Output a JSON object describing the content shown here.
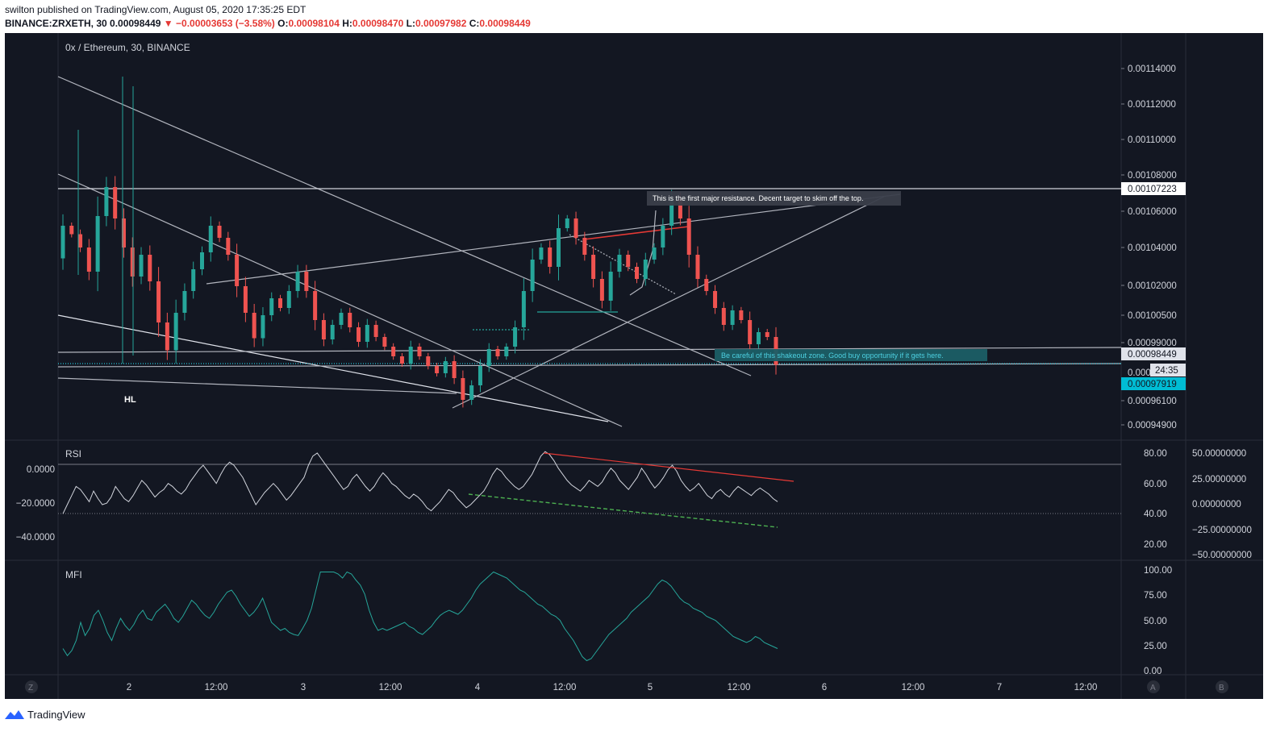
{
  "header": {
    "published_line": "swilton published on TradingView.com, August 05, 2020 17:35:25 EDT",
    "symbol": "BINANCE:ZRXETH, 30",
    "last": "0.00098449",
    "change": "−0.00003653 (−3.58%)",
    "o_label": "O:",
    "o": "0.00098104",
    "h_label": "H:",
    "h": "0.00098470",
    "l_label": "L:",
    "l": "0.00097982",
    "c_label": "C:",
    "c": "0.00098449"
  },
  "colors": {
    "background": "#131722",
    "up": "#26a69a",
    "down": "#ef5350",
    "rsi_line": "#d1d4dc",
    "mfi_line": "#26a69a",
    "resistance_red": "#e53935",
    "divergence_green": "#4caf50",
    "cyan_label": "#00bcd4"
  },
  "chart_data": [
    {
      "type": "candlestick",
      "title": "0x / Ethereum, 30, BINANCE",
      "x_ticks": [
        "2",
        "12:00",
        "3",
        "12:00",
        "4",
        "12:00",
        "5",
        "12:00",
        "6",
        "12:00",
        "7",
        "12:00"
      ],
      "y_ticks": [
        "0.00114000",
        "0.00112000",
        "0.00110000",
        "0.00108000",
        "0.00106000",
        "0.00104000",
        "0.00102000",
        "0.00100500",
        "0.00099000",
        "0.00096100",
        "0.00094900"
      ],
      "price_labels": {
        "resistance": "0.00107223",
        "last": "0.00098449",
        "countdown": "24:35",
        "cyan": "0.00097919",
        "partial": "0.000"
      },
      "annotations": {
        "resistance_note": "This is the first major resistance.  Decent target to skim off the top.",
        "shakeout_note": "Be careful of this shakeout zone.  Good buy opportunity if it gets here.",
        "hl": "HL"
      },
      "candles_approx": [
        [
          1.0285,
          1.042
        ],
        [
          1.042,
          1.0385
        ],
        [
          1.0385,
          1.033
        ],
        [
          1.033,
          1.023
        ],
        [
          1.023,
          1.046
        ],
        [
          1.046,
          1.058
        ],
        [
          1.058,
          1.045
        ],
        [
          1.045,
          1.033
        ],
        [
          1.033,
          1.021
        ],
        [
          1.021,
          1.03
        ],
        [
          1.03,
          1.019
        ],
        [
          1.019,
          1.002
        ],
        [
          1.002,
          0.9905
        ],
        [
          0.9905,
          1.006
        ],
        [
          1.006,
          1.015
        ],
        [
          1.015,
          1.024
        ],
        [
          1.024,
          1.031
        ],
        [
          1.031,
          1.042
        ],
        [
          1.042,
          1.037
        ],
        [
          1.037,
          1.03
        ],
        [
          1.03,
          1.017
        ],
        [
          1.017,
          1.006
        ],
        [
          1.006,
          0.9955
        ],
        [
          0.9955,
          1.005
        ],
        [
          1.005,
          1.012
        ],
        [
          1.012,
          1.008
        ],
        [
          1.008,
          1.015
        ],
        [
          1.015,
          1.023
        ],
        [
          1.023,
          1.015
        ],
        [
          1.015,
          1.003
        ],
        [
          1.003,
          0.995
        ],
        [
          0.995,
          1.001
        ],
        [
          1.001,
          1.006
        ],
        [
          1.006,
          1.0
        ],
        [
          1.0,
          0.994
        ],
        [
          0.994,
          1.001
        ],
        [
          1.001,
          0.996
        ],
        [
          0.996,
          0.992
        ],
        [
          0.992,
          0.988
        ],
        [
          0.988,
          0.985
        ],
        [
          0.985,
          0.992
        ],
        [
          0.992,
          0.988
        ],
        [
          0.988,
          0.984
        ],
        [
          0.984,
          0.981
        ],
        [
          0.981,
          0.986
        ],
        [
          0.986,
          0.979
        ],
        [
          0.979,
          0.97
        ],
        [
          0.97,
          0.976
        ],
        [
          0.976,
          0.984
        ],
        [
          0.984,
          0.991
        ],
        [
          0.991,
          0.988
        ],
        [
          0.988,
          0.992
        ],
        [
          0.992,
          1.0
        ],
        [
          1.0,
          1.015
        ],
        [
          1.015,
          1.028
        ],
        [
          1.028,
          1.033
        ],
        [
          1.033,
          1.025
        ],
        [
          1.025,
          1.041
        ],
        [
          1.041,
          1.045
        ],
        [
          1.045,
          1.037
        ],
        [
          1.037,
          1.03
        ],
        [
          1.03,
          1.02
        ],
        [
          1.02,
          1.011
        ],
        [
          1.011,
          1.023
        ],
        [
          1.023,
          1.03
        ],
        [
          1.03,
          1.025
        ],
        [
          1.025,
          1.02
        ],
        [
          1.02,
          1.028
        ],
        [
          1.028,
          1.033
        ],
        [
          1.033,
          1.042
        ],
        [
          1.042,
          1.053
        ],
        [
          1.053,
          1.045
        ],
        [
          1.045,
          1.03
        ],
        [
          1.03,
          1.02
        ],
        [
          1.02,
          1.015
        ],
        [
          1.015,
          1.008
        ],
        [
          1.008,
          1.001
        ],
        [
          1.001,
          1.007
        ],
        [
          1.007,
          1.003
        ],
        [
          1.003,
          0.993
        ],
        [
          0.993,
          0.998
        ],
        [
          0.998,
          0.996
        ],
        [
          0.996,
          0.9845
        ]
      ]
    },
    {
      "type": "line",
      "title": "RSI",
      "y_ticks_right": [
        "80.00",
        "60.00",
        "40.00",
        "20.00"
      ],
      "y_ticks_left": [
        "0.0000",
        "−20.0000",
        "−40.0000"
      ],
      "y_ticks_far_right": [
        "50.00000000",
        "25.00000000",
        "0.00000000",
        "−25.00000000",
        "−50.00000000"
      ],
      "ylim": [
        10,
        88
      ],
      "series": [
        {
          "values": [
            40,
            46,
            52,
            58,
            56,
            52,
            48,
            55,
            50,
            46,
            47,
            51,
            58,
            54,
            50,
            48,
            52,
            57,
            62,
            59,
            55,
            51,
            54,
            56,
            60,
            58,
            55,
            53,
            56,
            61,
            65,
            69,
            72,
            68,
            64,
            60,
            66,
            71,
            74,
            72,
            68,
            64,
            58,
            52,
            46,
            50,
            54,
            57,
            60,
            57,
            53,
            49,
            52,
            56,
            60,
            64,
            72,
            78,
            80,
            76,
            72,
            68,
            64,
            60,
            56,
            58,
            63,
            66,
            62,
            58,
            55,
            58,
            63,
            67,
            64,
            60,
            58,
            55,
            52,
            50,
            53,
            51,
            48,
            44,
            42,
            45,
            48,
            52,
            56,
            54,
            50,
            47,
            44,
            46,
            49,
            52,
            55,
            60,
            66,
            70,
            68,
            64,
            61,
            58,
            56,
            58,
            62,
            66,
            72,
            78,
            81,
            79,
            75,
            70,
            66,
            62,
            59,
            57,
            55,
            58,
            62,
            60,
            58,
            61,
            66,
            70,
            67,
            62,
            59,
            56,
            60,
            64,
            70,
            66,
            61,
            57,
            60,
            64,
            69,
            72,
            68,
            62,
            58,
            55,
            57,
            60,
            56,
            52,
            50,
            54,
            56,
            53,
            51,
            55,
            58,
            56,
            54,
            52,
            55,
            57,
            55,
            53,
            50,
            48
          ]
        }
      ],
      "ref_lines": [
        70,
        40
      ],
      "divergence_lines": [
        "red descending resistance on RSI",
        "green dashed descending support on RSI"
      ]
    },
    {
      "type": "line",
      "title": "MFI",
      "y_ticks": [
        "100.00",
        "75.00",
        "50.00",
        "25.00",
        "0.00"
      ],
      "ylim": [
        0,
        100
      ],
      "series": [
        {
          "values": [
            22,
            15,
            20,
            30,
            48,
            35,
            42,
            55,
            60,
            50,
            38,
            30,
            42,
            52,
            45,
            40,
            46,
            55,
            60,
            52,
            50,
            58,
            62,
            66,
            60,
            52,
            48,
            54,
            62,
            70,
            66,
            60,
            55,
            52,
            58,
            66,
            72,
            78,
            80,
            74,
            66,
            60,
            54,
            58,
            64,
            72,
            60,
            48,
            44,
            40,
            42,
            38,
            36,
            35,
            42,
            50,
            62,
            80,
            98,
            98,
            98,
            98,
            96,
            92,
            98,
            96,
            90,
            85,
            76,
            60,
            48,
            40,
            42,
            40,
            42,
            44,
            46,
            48,
            44,
            42,
            38,
            36,
            40,
            44,
            50,
            55,
            58,
            60,
            58,
            56,
            60,
            66,
            72,
            80,
            86,
            90,
            94,
            98,
            96,
            94,
            92,
            88,
            84,
            80,
            78,
            74,
            70,
            66,
            64,
            60,
            56,
            54,
            50,
            42,
            36,
            30,
            22,
            14,
            10,
            12,
            18,
            24,
            30,
            36,
            40,
            44,
            48,
            52,
            58,
            62,
            66,
            70,
            74,
            80,
            86,
            90,
            88,
            84,
            78,
            72,
            68,
            66,
            62,
            60,
            58,
            54,
            52,
            50,
            46,
            42,
            38,
            34,
            32,
            30,
            28,
            30,
            34,
            32,
            28,
            26,
            24,
            22
          ]
        }
      ]
    }
  ],
  "axis_buttons": {
    "z": "Z",
    "a": "A",
    "b": "B"
  },
  "footer": {
    "brand": "TradingView"
  }
}
